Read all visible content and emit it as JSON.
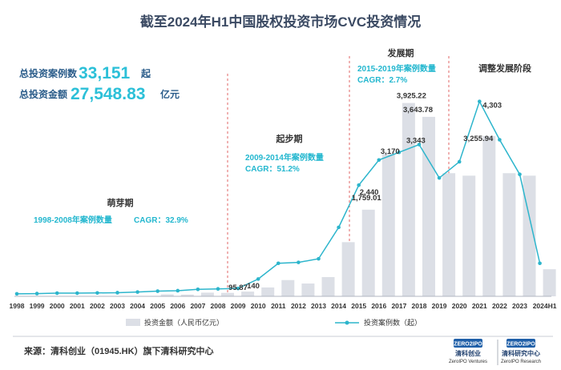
{
  "title": "截至2024年H1中国股权投资市场CVC投资情况",
  "stats": {
    "count_prefix": "总投资案例数",
    "count_value": "33,151",
    "count_suffix": "起",
    "amount_prefix": "总投资金额",
    "amount_value": "27,548.83",
    "amount_suffix": "亿元"
  },
  "phases": [
    {
      "name": "萌芽期",
      "sub1": "1998-2008年案例数量",
      "sub2": "CAGR：32.9%"
    },
    {
      "name": "起步期",
      "sub1": "2009-2014年案例数量",
      "sub2": "CAGR：51.2%"
    },
    {
      "name": "发展期",
      "sub1": "2015-2019年案例数量",
      "sub2": "CAGR：2.7%"
    },
    {
      "name": "调整发展阶段",
      "sub1": "",
      "sub2": ""
    }
  ],
  "source": "来源：清科创业（01945.HK）旗下清科研究中心",
  "logos": [
    {
      "brand": "ZERO2IPO",
      "cn": "清科创业",
      "en": "ZeroIPO Ventures"
    },
    {
      "brand": "ZERO2IPO",
      "cn": "清科研究中心",
      "en": "ZeroIPO Research"
    }
  ],
  "colors": {
    "bar": "#dcdfe6",
    "line": "#2cb5cc",
    "phase_text": "#23b7cf",
    "divider": "#e06666",
    "title": "#3b4a63"
  },
  "chart_data": {
    "type": "bar",
    "categories": [
      "1998",
      "1999",
      "2000",
      "2001",
      "2002",
      "2003",
      "2004",
      "2005",
      "2006",
      "2007",
      "2008",
      "2009",
      "2010",
      "2011",
      "2012",
      "2013",
      "2014",
      "2015",
      "2016",
      "2017",
      "2018",
      "2019",
      "2020",
      "2021",
      "2022",
      "2023",
      "2024H1"
    ],
    "series": [
      {
        "name": "投资金额（人民币亿元）",
        "type": "bar",
        "values": [
          1,
          1,
          2,
          2,
          3,
          4,
          6,
          40,
          35,
          75,
          70,
          95.87,
          180,
          330,
          260,
          390,
          1100,
          1759.01,
          2900,
          3925.22,
          3643.78,
          2500,
          2450,
          3255.94,
          2500,
          2450,
          550
        ]
      },
      {
        "name": "投资案例数（起）",
        "type": "line",
        "values": [
          20,
          25,
          35,
          35,
          40,
          45,
          60,
          80,
          90,
          120,
          130,
          140,
          350,
          700,
          720,
          800,
          1500,
          2440,
          3000,
          3170,
          3343,
          2600,
          2960,
          4303,
          3450,
          2680,
          700
        ]
      }
    ],
    "data_labels": [
      {
        "category": "2009",
        "series": "投资金额（人民币亿元）",
        "text": "95.87"
      },
      {
        "category": "2009",
        "series": "投资案例数（起）",
        "text": "140"
      },
      {
        "category": "2015",
        "series": "投资金额（人民币亿元）",
        "text": "1,759.01"
      },
      {
        "category": "2015",
        "series": "投资案例数（起）",
        "text": "2,440"
      },
      {
        "category": "2017",
        "series": "投资金额（人民币亿元）",
        "text": "3,925.22"
      },
      {
        "category": "2017",
        "series": "投资案例数（起）",
        "text": "3,170"
      },
      {
        "category": "2018",
        "series": "投资金额（人民币亿元）",
        "text": "3,643.78"
      },
      {
        "category": "2018",
        "series": "投资案例数（起）",
        "text": "3,343"
      },
      {
        "category": "2021",
        "series": "投资金额（人民币亿元）",
        "text": "3,255.94"
      },
      {
        "category": "2021",
        "series": "投资案例数（起）",
        "text": "4,303"
      }
    ],
    "bar_ylim": [
      0,
      4000
    ],
    "line_ylim": [
      0,
      4600
    ],
    "legend_position": "bottom",
    "grid": false,
    "title": "截至2024年H1中国股权投资市场CVC投资情况"
  }
}
